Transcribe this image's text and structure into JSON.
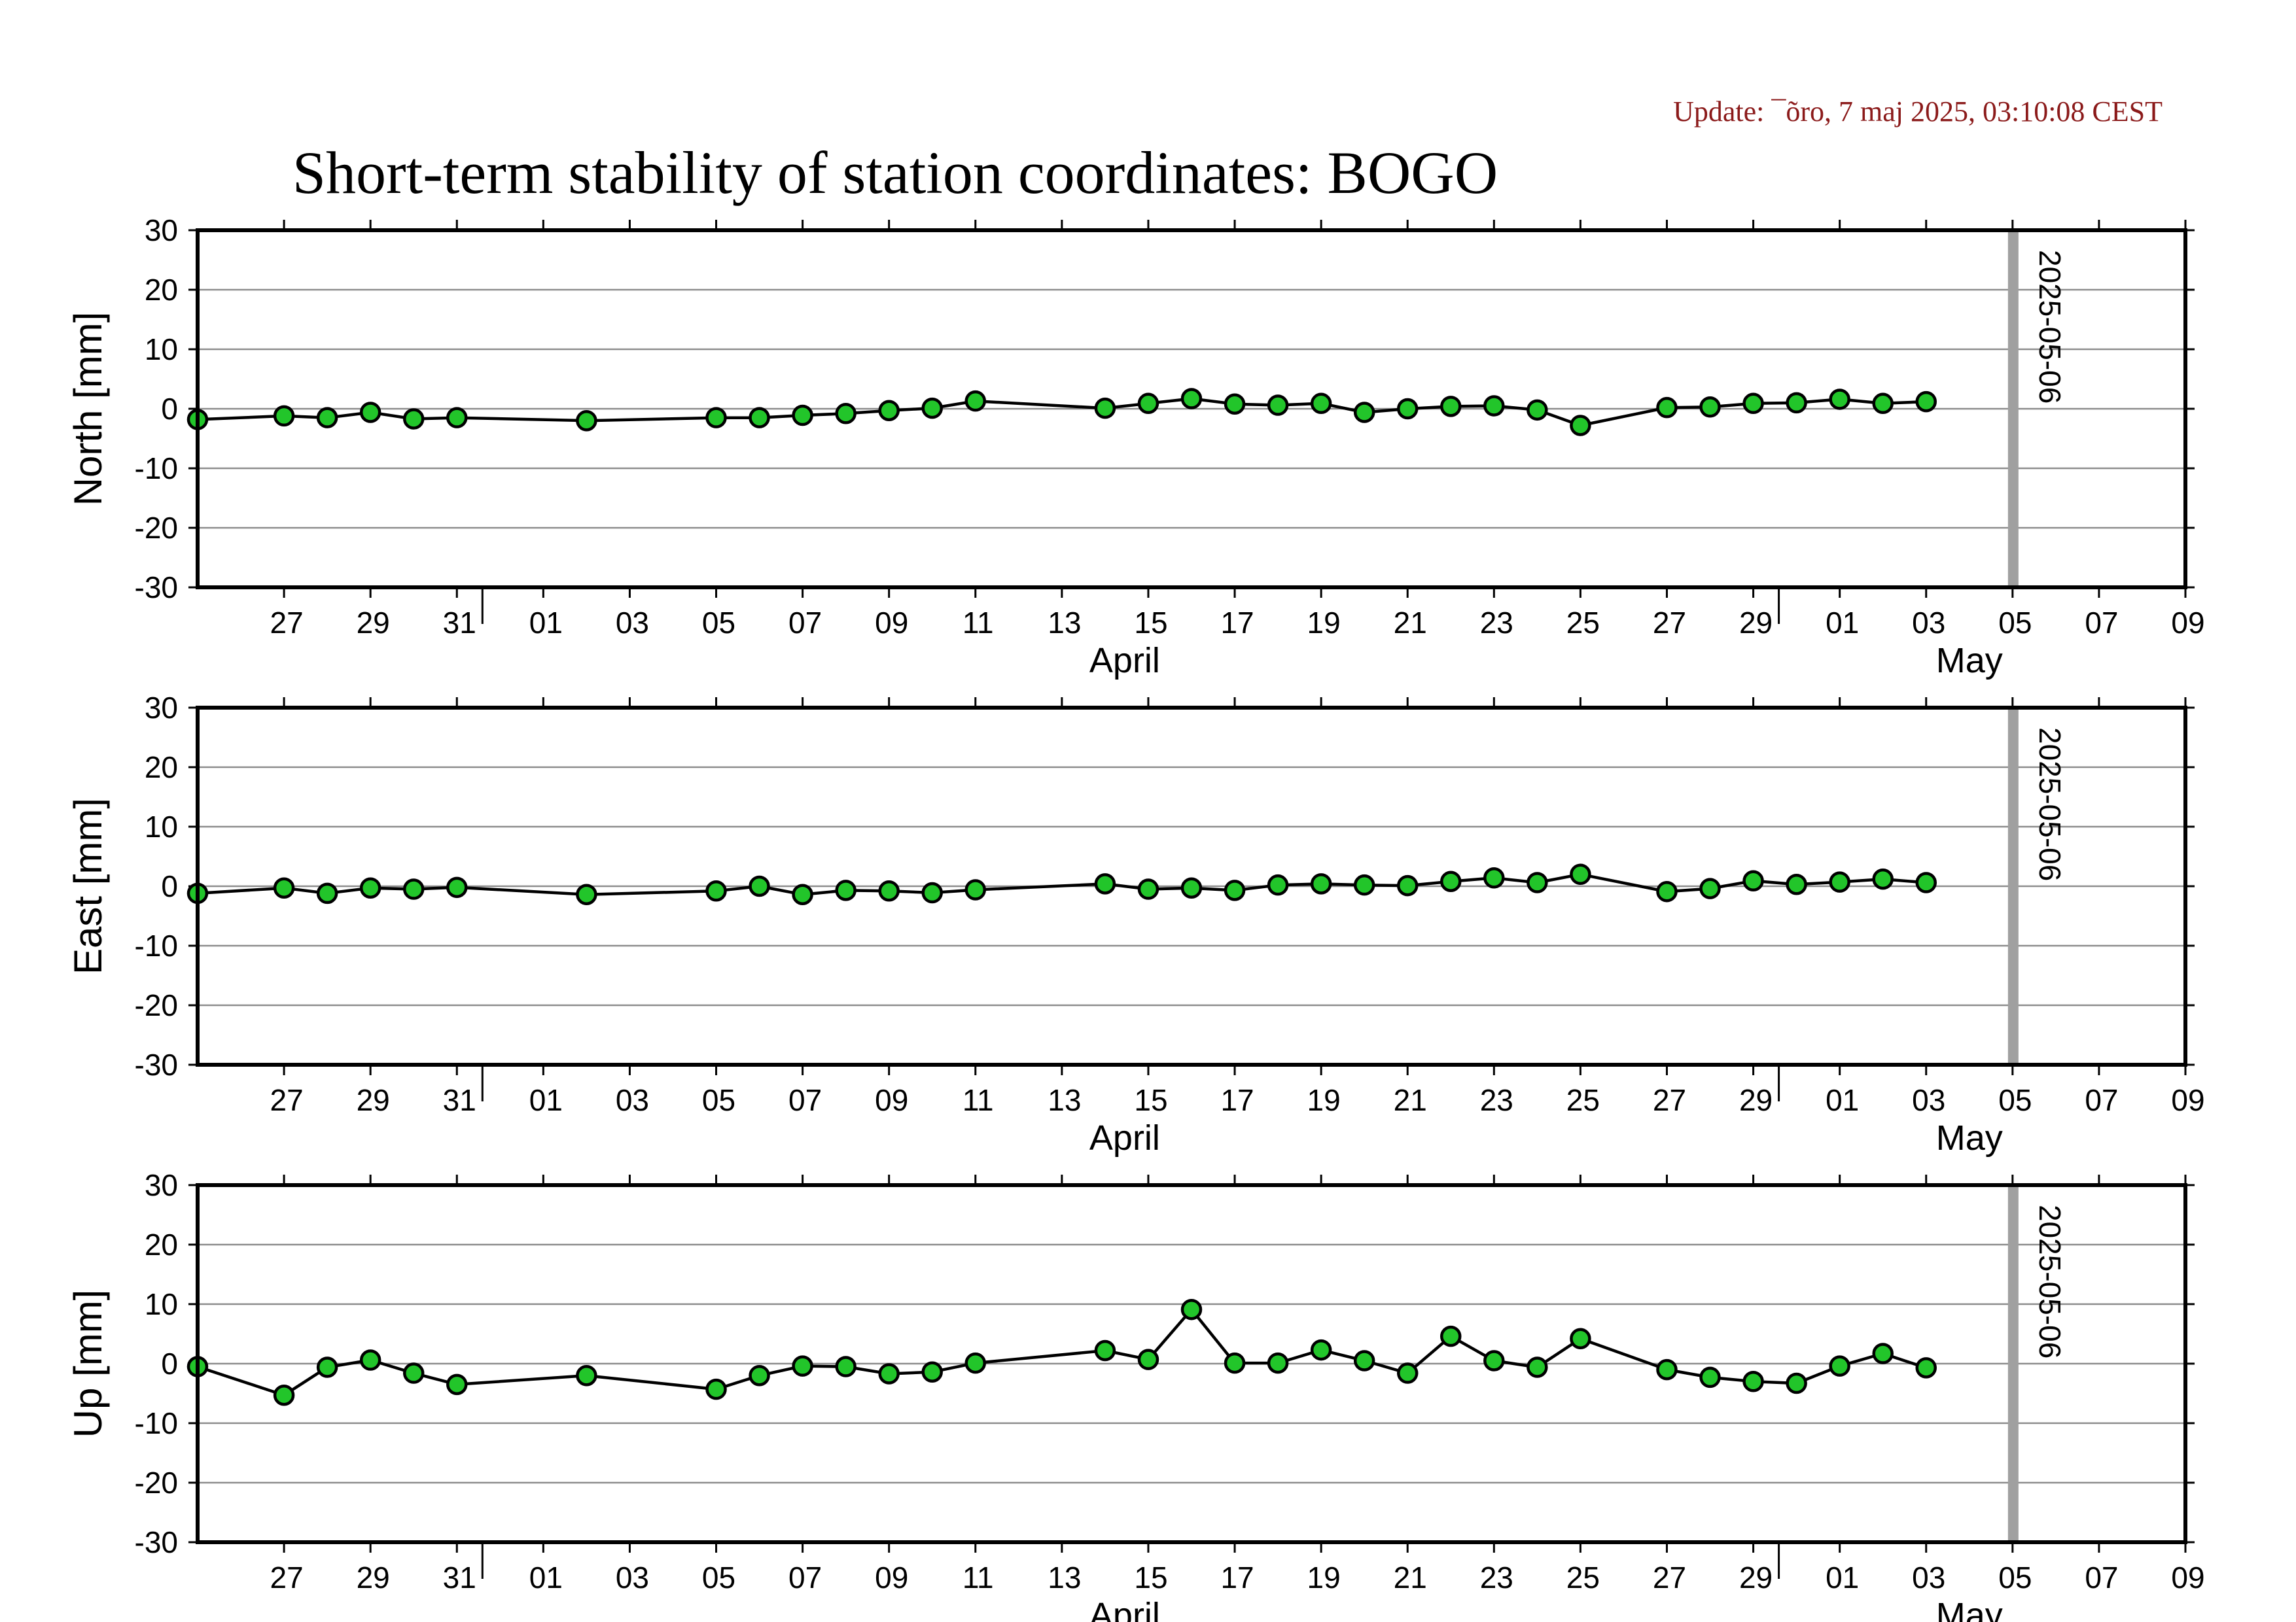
{
  "header": {
    "update": "Update: ¯õro, 7 maj 2025, 03:10:08 CEST",
    "title": "Short-term stability of station coordinates: BOGO"
  },
  "colors": {
    "marker_fill": "#22c52a",
    "marker_stroke": "#000000",
    "line": "#000000",
    "grid": "#8c8c8c",
    "vline": "#a0a0a0"
  },
  "chart_data": [
    {
      "type": "line",
      "ylabel": "North [mm]",
      "ylim": [
        -30,
        30
      ],
      "yticks": [
        30,
        20,
        10,
        0,
        -10,
        -20,
        -30
      ],
      "xlim": [
        "2025-03-25",
        "2025-05-10"
      ],
      "grid": "horizontal",
      "xtick_labels": [
        "27",
        "29",
        "31",
        "01",
        "03",
        "05",
        "07",
        "09",
        "11",
        "13",
        "15",
        "17",
        "19",
        "21",
        "23",
        "25",
        "27",
        "29",
        "01",
        "03",
        "05",
        "07",
        "09"
      ],
      "months": [
        "April",
        "May"
      ],
      "vertical_marker": {
        "date": "2025-05-06",
        "label": "2025-05-06"
      },
      "series": [
        {
          "x": [
            "2025-03-25",
            "2025-03-27",
            "2025-03-28",
            "2025-03-29",
            "2025-03-30",
            "2025-03-31",
            "2025-04-03",
            "2025-04-06",
            "2025-04-07",
            "2025-04-08",
            "2025-04-09",
            "2025-04-10",
            "2025-04-11",
            "2025-04-12",
            "2025-04-15",
            "2025-04-16",
            "2025-04-17",
            "2025-04-18",
            "2025-04-19",
            "2025-04-20",
            "2025-04-21",
            "2025-04-22",
            "2025-04-23",
            "2025-04-24",
            "2025-04-25",
            "2025-04-26",
            "2025-04-28",
            "2025-04-29",
            "2025-04-30",
            "2025-05-01",
            "2025-05-02",
            "2025-05-03",
            "2025-05-04"
          ],
          "y": [
            -1.8,
            -1.2,
            -1.5,
            -0.6,
            -1.7,
            -1.5,
            -2.0,
            -1.5,
            -1.5,
            -1.1,
            -0.8,
            -0.3,
            0.1,
            1.3,
            0.1,
            0.9,
            1.7,
            0.8,
            0.6,
            0.9,
            -0.6,
            0.0,
            0.4,
            0.5,
            -0.2,
            -2.8,
            0.2,
            0.3,
            0.9,
            1.0,
            1.6,
            0.9,
            1.2
          ]
        }
      ]
    },
    {
      "type": "line",
      "ylabel": "East [mm]",
      "ylim": [
        -30,
        30
      ],
      "yticks": [
        30,
        20,
        10,
        0,
        -10,
        -20,
        -30
      ],
      "xlim": [
        "2025-03-25",
        "2025-05-10"
      ],
      "grid": "horizontal",
      "xtick_labels": [
        "27",
        "29",
        "31",
        "01",
        "03",
        "05",
        "07",
        "09",
        "11",
        "13",
        "15",
        "17",
        "19",
        "21",
        "23",
        "25",
        "27",
        "29",
        "01",
        "03",
        "05",
        "07",
        "09"
      ],
      "months": [
        "April",
        "May"
      ],
      "vertical_marker": {
        "date": "2025-05-06",
        "label": "2025-05-06"
      },
      "series": [
        {
          "x": [
            "2025-03-25",
            "2025-03-27",
            "2025-03-28",
            "2025-03-29",
            "2025-03-30",
            "2025-03-31",
            "2025-04-03",
            "2025-04-06",
            "2025-04-07",
            "2025-04-08",
            "2025-04-09",
            "2025-04-10",
            "2025-04-11",
            "2025-04-12",
            "2025-04-15",
            "2025-04-16",
            "2025-04-17",
            "2025-04-18",
            "2025-04-19",
            "2025-04-20",
            "2025-04-21",
            "2025-04-22",
            "2025-04-23",
            "2025-04-24",
            "2025-04-25",
            "2025-04-26",
            "2025-04-28",
            "2025-04-29",
            "2025-04-30",
            "2025-05-01",
            "2025-05-02",
            "2025-05-03",
            "2025-05-04"
          ],
          "y": [
            -1.2,
            -0.3,
            -1.2,
            -0.3,
            -0.5,
            -0.2,
            -1.4,
            -0.8,
            0.0,
            -1.4,
            -0.7,
            -0.8,
            -1.1,
            -0.6,
            0.4,
            -0.5,
            -0.3,
            -0.7,
            0.2,
            0.4,
            0.2,
            0.1,
            0.8,
            1.4,
            0.6,
            2.0,
            -0.9,
            -0.4,
            0.9,
            0.3,
            0.7,
            1.2,
            0.6
          ]
        }
      ]
    },
    {
      "type": "line",
      "ylabel": "Up [mm]",
      "ylim": [
        -30,
        30
      ],
      "yticks": [
        30,
        20,
        10,
        0,
        -10,
        -20,
        -30
      ],
      "xlim": [
        "2025-03-25",
        "2025-05-10"
      ],
      "grid": "horizontal",
      "xtick_labels": [
        "27",
        "29",
        "31",
        "01",
        "03",
        "05",
        "07",
        "09",
        "11",
        "13",
        "15",
        "17",
        "19",
        "21",
        "23",
        "25",
        "27",
        "29",
        "01",
        "03",
        "05",
        "07",
        "09"
      ],
      "months": [
        "April",
        "May"
      ],
      "vertical_marker": {
        "date": "2025-05-06",
        "label": "2025-05-06"
      },
      "series": [
        {
          "x": [
            "2025-03-25",
            "2025-03-27",
            "2025-03-28",
            "2025-03-29",
            "2025-03-30",
            "2025-03-31",
            "2025-04-03",
            "2025-04-06",
            "2025-04-07",
            "2025-04-08",
            "2025-04-09",
            "2025-04-10",
            "2025-04-11",
            "2025-04-12",
            "2025-04-15",
            "2025-04-16",
            "2025-04-17",
            "2025-04-18",
            "2025-04-19",
            "2025-04-20",
            "2025-04-21",
            "2025-04-22",
            "2025-04-23",
            "2025-04-24",
            "2025-04-25",
            "2025-04-26",
            "2025-04-28",
            "2025-04-29",
            "2025-04-30",
            "2025-05-01",
            "2025-05-02",
            "2025-05-03",
            "2025-05-04"
          ],
          "y": [
            -0.5,
            -5.3,
            -0.6,
            0.6,
            -1.6,
            -3.5,
            -2.0,
            -4.3,
            -2.0,
            -0.4,
            -0.5,
            -1.7,
            -1.4,
            0.1,
            2.2,
            0.7,
            9.1,
            0.1,
            0.1,
            2.3,
            0.5,
            -1.6,
            4.6,
            0.5,
            -0.6,
            4.2,
            -1.0,
            -2.3,
            -3.0,
            -3.3,
            -0.4,
            1.7,
            -0.7
          ]
        }
      ]
    }
  ]
}
